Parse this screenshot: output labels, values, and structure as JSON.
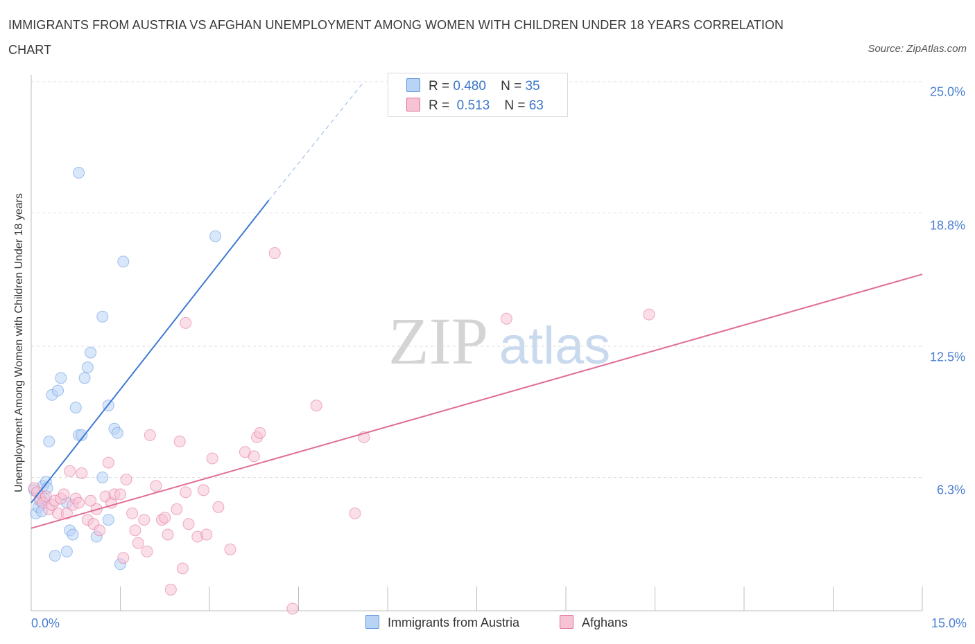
{
  "chart_data": {
    "type": "scatter",
    "title": "IMMIGRANTS FROM AUSTRIA VS AFGHAN UNEMPLOYMENT AMONG WOMEN WITH CHILDREN UNDER 18 YEARS CORRELATION CHART",
    "source": "Source: ZipAtlas.com",
    "ylabel": "Unemployment Among Women with Children Under 18 years",
    "xlim": [
      0,
      15
    ],
    "ylim": [
      0,
      25
    ],
    "y_ticks": [
      6.3,
      12.5,
      18.8,
      25.0
    ],
    "y_tick_labels": [
      "6.3%",
      "12.5%",
      "18.8%",
      "25.0%"
    ],
    "x_tick_labels": [
      "0.0%",
      "15.0%"
    ],
    "watermark": {
      "zip": "ZIP",
      "atlas": "atlas"
    },
    "legend": [
      {
        "r_label": "R =",
        "r": "0.480",
        "n_label": "N =",
        "n": "35"
      },
      {
        "r_label": "R =",
        "r": "0.513",
        "n_label": "N =",
        "n": "63"
      }
    ],
    "series": [
      {
        "name": "Immigrants from Austria",
        "color": "#5b93e0",
        "fill": "#b9d3f5",
        "points": [
          [
            0.05,
            5.7
          ],
          [
            0.08,
            4.6
          ],
          [
            0.12,
            4.9
          ],
          [
            0.15,
            5.2
          ],
          [
            0.18,
            4.7
          ],
          [
            0.2,
            5.9
          ],
          [
            0.22,
            5.3
          ],
          [
            0.25,
            6.1
          ],
          [
            0.27,
            5.8
          ],
          [
            0.3,
            8.0
          ],
          [
            0.35,
            10.2
          ],
          [
            0.4,
            2.6
          ],
          [
            0.45,
            10.4
          ],
          [
            0.5,
            11.0
          ],
          [
            0.6,
            2.8
          ],
          [
            0.65,
            3.8
          ],
          [
            0.7,
            3.6
          ],
          [
            0.75,
            9.6
          ],
          [
            0.8,
            8.3
          ],
          [
            0.85,
            8.3
          ],
          [
            0.9,
            11.0
          ],
          [
            0.95,
            11.5
          ],
          [
            1.0,
            12.2
          ],
          [
            1.1,
            3.5
          ],
          [
            1.2,
            6.3
          ],
          [
            1.2,
            13.9
          ],
          [
            1.3,
            9.7
          ],
          [
            1.3,
            4.3
          ],
          [
            1.4,
            8.6
          ],
          [
            1.45,
            8.4
          ],
          [
            1.5,
            2.2
          ],
          [
            1.55,
            16.5
          ],
          [
            0.8,
            20.7
          ],
          [
            3.1,
            17.7
          ],
          [
            0.6,
            5.1
          ]
        ]
      },
      {
        "name": "Afghans",
        "color": "#e16c97",
        "fill": "#f6c3d5",
        "points": [
          [
            0.05,
            5.8
          ],
          [
            0.1,
            5.6
          ],
          [
            0.15,
            5.3
          ],
          [
            0.2,
            5.1
          ],
          [
            0.25,
            5.4
          ],
          [
            0.3,
            4.8
          ],
          [
            0.35,
            5.0
          ],
          [
            0.4,
            5.2
          ],
          [
            0.45,
            4.6
          ],
          [
            0.5,
            5.3
          ],
          [
            0.55,
            5.5
          ],
          [
            0.6,
            4.6
          ],
          [
            0.65,
            6.6
          ],
          [
            0.7,
            5.0
          ],
          [
            0.75,
            5.3
          ],
          [
            0.8,
            5.1
          ],
          [
            0.85,
            6.5
          ],
          [
            0.95,
            4.3
          ],
          [
            1.0,
            5.2
          ],
          [
            1.05,
            4.1
          ],
          [
            1.1,
            4.8
          ],
          [
            1.15,
            3.8
          ],
          [
            1.25,
            5.4
          ],
          [
            1.3,
            7.0
          ],
          [
            1.35,
            5.1
          ],
          [
            1.4,
            5.5
          ],
          [
            1.5,
            5.5
          ],
          [
            1.55,
            2.5
          ],
          [
            1.6,
            6.2
          ],
          [
            1.7,
            4.6
          ],
          [
            1.75,
            3.8
          ],
          [
            1.8,
            3.2
          ],
          [
            1.9,
            4.3
          ],
          [
            1.95,
            2.8
          ],
          [
            2.0,
            8.3
          ],
          [
            2.1,
            5.9
          ],
          [
            2.2,
            4.3
          ],
          [
            2.25,
            4.4
          ],
          [
            2.3,
            3.6
          ],
          [
            2.35,
            1.0
          ],
          [
            2.45,
            4.8
          ],
          [
            2.5,
            8.0
          ],
          [
            2.55,
            2.0
          ],
          [
            2.6,
            5.6
          ],
          [
            2.65,
            4.1
          ],
          [
            2.8,
            3.5
          ],
          [
            2.9,
            5.7
          ],
          [
            2.95,
            3.6
          ],
          [
            3.05,
            7.2
          ],
          [
            3.15,
            4.9
          ],
          [
            3.35,
            2.9
          ],
          [
            3.6,
            7.5
          ],
          [
            3.75,
            7.3
          ],
          [
            3.8,
            8.2
          ],
          [
            3.85,
            8.4
          ],
          [
            4.1,
            16.9
          ],
          [
            4.4,
            0.1
          ],
          [
            4.8,
            9.7
          ],
          [
            5.45,
            4.6
          ],
          [
            5.6,
            8.2
          ],
          [
            8.0,
            13.8
          ],
          [
            10.4,
            14.0
          ],
          [
            2.6,
            13.6
          ]
        ]
      }
    ],
    "trendlines": [
      {
        "series": "Immigrants from Austria",
        "solid_from": [
          0.0,
          5.1
        ],
        "solid_to": [
          4.0,
          19.4
        ],
        "dashed_to": [
          5.6,
          25.0
        ]
      },
      {
        "series": "Afghans",
        "from": [
          0.0,
          3.9
        ],
        "to": [
          15.0,
          15.9
        ]
      }
    ]
  }
}
